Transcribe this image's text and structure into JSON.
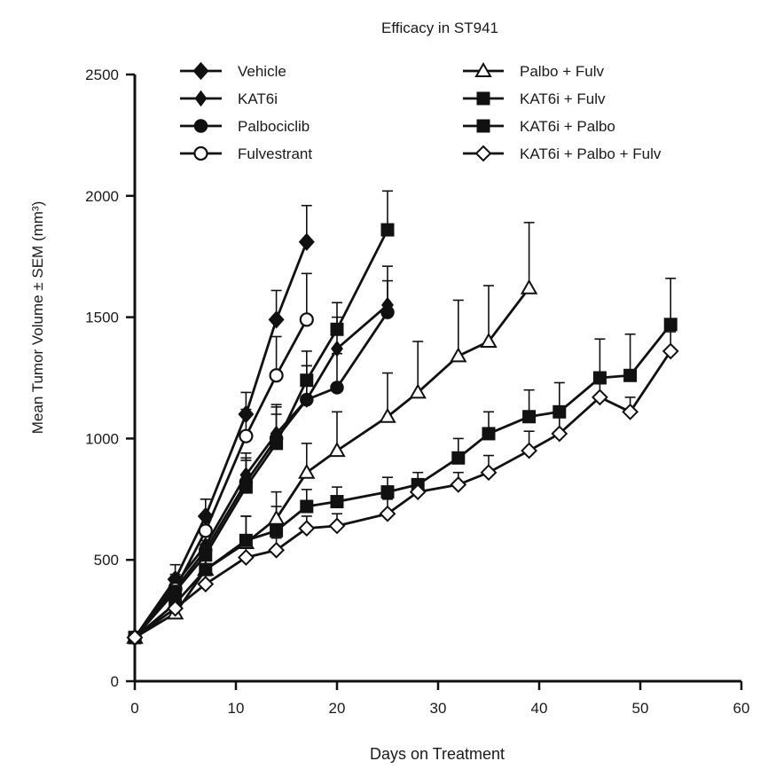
{
  "chart_data": {
    "type": "line",
    "title": "Efficacy in ST941",
    "xlabel": "Days on Treatment",
    "ylabel": "Mean Tumor Volume ± SEM (mm³)",
    "xlim": [
      0,
      60
    ],
    "ylim": [
      0,
      2500
    ],
    "xticks": [
      0,
      10,
      20,
      30,
      40,
      50,
      60
    ],
    "yticks": [
      0,
      500,
      1000,
      1500,
      2000,
      2500
    ],
    "legend_position": "top",
    "series": [
      {
        "name": "Vehicle",
        "marker": "diamond-filled",
        "x": [
          0,
          4,
          7,
          11,
          14,
          17
        ],
        "y": [
          180,
          420,
          680,
          1100,
          1490,
          1810
        ],
        "err": [
          0,
          60,
          70,
          90,
          120,
          150
        ]
      },
      {
        "name": "KAT6i",
        "marker": "diamond-filled-small",
        "x": [
          0,
          4,
          7,
          11,
          14,
          17,
          20,
          25
        ],
        "y": [
          180,
          400,
          560,
          850,
          1020,
          1160,
          1370,
          1550
        ],
        "err": [
          0,
          40,
          60,
          70,
          120,
          140,
          130,
          160
        ]
      },
      {
        "name": "Palbociclib",
        "marker": "circle-filled",
        "x": [
          0,
          4,
          7,
          11,
          14,
          17,
          20,
          25
        ],
        "y": [
          180,
          380,
          540,
          820,
          1000,
          1160,
          1210,
          1520
        ],
        "err": [
          0,
          40,
          60,
          120,
          130,
          140,
          140,
          130
        ]
      },
      {
        "name": "Fulvestrant",
        "marker": "circle-open",
        "x": [
          0,
          4,
          7,
          11,
          14,
          17
        ],
        "y": [
          180,
          380,
          620,
          1010,
          1260,
          1490
        ],
        "err": [
          0,
          50,
          60,
          110,
          160,
          190
        ]
      },
      {
        "name": "Palbo + Fulv",
        "marker": "triangle-open",
        "x": [
          0,
          4,
          7,
          11,
          14,
          17,
          20,
          25,
          28,
          32,
          35,
          39
        ],
        "y": [
          180,
          280,
          460,
          570,
          670,
          860,
          950,
          1090,
          1190,
          1340,
          1400,
          1620
        ],
        "err": [
          0,
          30,
          50,
          110,
          110,
          120,
          160,
          180,
          210,
          230,
          230,
          270
        ]
      },
      {
        "name": "KAT6i + Fulv",
        "marker": "square-filled",
        "x": [
          0,
          4,
          7,
          11,
          14,
          17,
          20,
          25
        ],
        "y": [
          180,
          370,
          520,
          800,
          980,
          1240,
          1450,
          1860
        ],
        "err": [
          0,
          40,
          60,
          110,
          120,
          120,
          110,
          160
        ]
      },
      {
        "name": "KAT6i + Palbo",
        "marker": "square-filled",
        "x": [
          0,
          4,
          7,
          11,
          14,
          17,
          20,
          25,
          28,
          32,
          35,
          39,
          42,
          46,
          49,
          53
        ],
        "y": [
          180,
          320,
          460,
          580,
          620,
          720,
          740,
          780,
          810,
          920,
          1020,
          1090,
          1110,
          1250,
          1260,
          1470
        ],
        "err": [
          0,
          40,
          60,
          100,
          100,
          70,
          60,
          60,
          50,
          80,
          90,
          110,
          120,
          160,
          170,
          190
        ]
      },
      {
        "name": "KAT6i + Palbo + Fulv",
        "marker": "diamond-open",
        "x": [
          0,
          4,
          7,
          11,
          14,
          17,
          20,
          25,
          28,
          32,
          35,
          39,
          42,
          46,
          49,
          53
        ],
        "y": [
          180,
          300,
          400,
          510,
          540,
          630,
          640,
          690,
          780,
          810,
          860,
          950,
          1020,
          1170,
          1110,
          1360
        ],
        "err": [
          0,
          30,
          40,
          50,
          50,
          50,
          50,
          60,
          40,
          50,
          70,
          80,
          90,
          90,
          60,
          80
        ]
      }
    ]
  }
}
